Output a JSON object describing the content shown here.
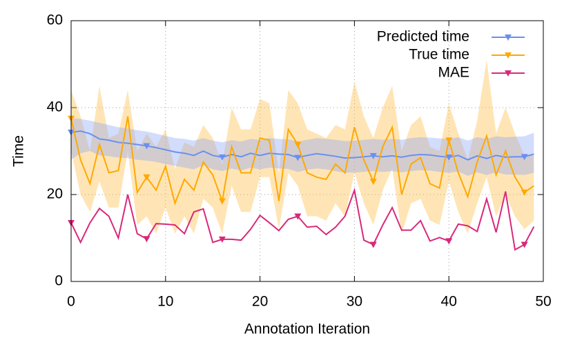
{
  "chart_data": {
    "type": "line",
    "xlabel": "Annotation Iteration",
    "ylabel": "Time",
    "x": [
      0,
      1,
      2,
      3,
      4,
      5,
      6,
      7,
      8,
      9,
      10,
      11,
      12,
      13,
      14,
      15,
      16,
      17,
      18,
      19,
      20,
      21,
      22,
      23,
      24,
      25,
      26,
      27,
      28,
      29,
      30,
      31,
      32,
      33,
      34,
      35,
      36,
      37,
      38,
      39,
      40,
      41,
      42,
      43,
      44,
      45,
      46,
      47,
      48,
      49
    ],
    "series": [
      {
        "name": "Predicted time",
        "color": "#6b8ff0",
        "band_color": "#8fa8f8",
        "values": [
          34.3,
          34.6,
          34,
          32.8,
          32.5,
          32,
          31.8,
          31.5,
          31.2,
          30.8,
          30.3,
          29.8,
          29.5,
          29,
          30,
          29,
          28.6,
          29.2,
          28.7,
          29.5,
          29,
          29.5,
          29.3,
          29.2,
          28.5,
          29,
          29.4,
          29.1,
          28.8,
          28.4,
          28.5,
          28.7,
          28.9,
          28.7,
          28.9,
          28.6,
          29,
          29.2,
          29.1,
          28.8,
          28.6,
          29,
          28,
          28.9,
          28.3,
          29,
          28.6,
          28.7,
          28.7,
          29.3
        ],
        "band": {
          "upper": [
            37.5,
            37.4,
            37,
            36.5,
            36,
            35.5,
            35.2,
            34.8,
            34.5,
            34,
            33.5,
            33,
            32.8,
            32.4,
            33,
            32.4,
            32,
            32.5,
            32.2,
            32.8,
            32.6,
            33,
            32.8,
            32.7,
            32.2,
            32.6,
            33,
            32.8,
            32.6,
            32.3,
            32.4,
            32.6,
            32.8,
            32.6,
            32.8,
            32.6,
            33,
            33.2,
            33.1,
            32.9,
            32.8,
            33.2,
            32.4,
            33.2,
            32.8,
            33.4,
            33.2,
            33.3,
            33.4,
            34.2
          ],
          "lower": [
            28,
            29.5,
            30,
            29,
            28.8,
            28.5,
            28.4,
            28,
            27.8,
            27.5,
            27,
            26.6,
            26.2,
            25.8,
            26.8,
            25.8,
            25.4,
            26,
            25.5,
            26.2,
            25.8,
            26.2,
            26,
            25.9,
            25.2,
            25.7,
            26,
            25.8,
            25.4,
            25,
            25.1,
            25.2,
            25.4,
            25.2,
            25.4,
            25.1,
            25.4,
            25.6,
            25.5,
            25.2,
            25,
            25.3,
            24.3,
            25.1,
            24.5,
            25.1,
            24.6,
            24.6,
            24.5,
            25
          ]
        }
      },
      {
        "name": "True time",
        "color": "#ffa800",
        "band_color": "#ffbe45",
        "values": [
          37.5,
          28,
          22.5,
          31.5,
          25,
          25.5,
          38,
          20.5,
          24,
          21,
          26.5,
          18,
          23.5,
          21,
          27.5,
          24.5,
          18.5,
          31,
          25,
          25,
          33,
          32.5,
          18.5,
          35,
          31.5,
          25,
          24,
          23.5,
          27,
          25,
          35.5,
          28,
          23,
          31,
          35.5,
          20,
          27,
          28.5,
          22.5,
          21.5,
          32.5,
          25,
          19.5,
          27.5,
          33.5,
          24.5,
          30,
          24,
          20.5,
          22
        ],
        "band": {
          "upper": [
            44,
            38,
            30,
            45,
            33,
            34,
            44,
            30,
            34,
            31,
            35,
            26,
            32,
            31,
            36,
            33,
            27,
            40,
            35,
            35,
            42,
            41,
            25,
            44,
            41,
            35,
            34,
            33,
            36,
            35,
            46,
            38,
            33,
            40,
            45,
            30,
            36,
            38,
            31,
            30,
            41,
            34,
            28,
            37,
            51,
            34,
            40,
            34,
            29,
            29
          ],
          "lower": [
            30,
            20,
            16,
            23,
            17,
            17,
            30,
            13,
            15,
            11,
            17,
            11,
            15,
            11,
            19,
            17,
            11,
            22,
            16,
            16,
            24,
            24,
            12,
            25,
            22,
            15,
            15,
            14,
            18,
            15,
            25,
            18,
            13,
            21,
            26,
            11,
            18,
            19,
            14,
            13,
            23,
            16,
            11,
            18,
            24,
            15,
            20,
            15,
            12,
            14
          ]
        }
      },
      {
        "name": "MAE",
        "color": "#d8287a",
        "values": [
          13.5,
          9,
          13.5,
          16.8,
          15,
          10,
          20,
          11,
          9.8,
          13.3,
          13.2,
          13,
          11,
          16,
          16.7,
          9,
          9.7,
          9.7,
          9.5,
          12,
          15.2,
          13.5,
          11.7,
          14.3,
          15,
          12.5,
          12.7,
          10.8,
          12.5,
          15,
          21,
          9.5,
          8.5,
          13,
          17,
          11.8,
          11.8,
          14,
          9.3,
          10.1,
          9.3,
          13.2,
          12.8,
          11.5,
          19,
          11.3,
          20.7,
          7.3,
          8.5,
          12.6
        ]
      }
    ],
    "marker_every": 8,
    "xlim": [
      0,
      50
    ],
    "xticks": [
      0,
      10,
      20,
      30,
      40,
      50
    ],
    "ylim": [
      0,
      60
    ],
    "yticks": [
      0,
      20,
      40,
      60
    ],
    "grid": true,
    "legend": "top-right"
  }
}
